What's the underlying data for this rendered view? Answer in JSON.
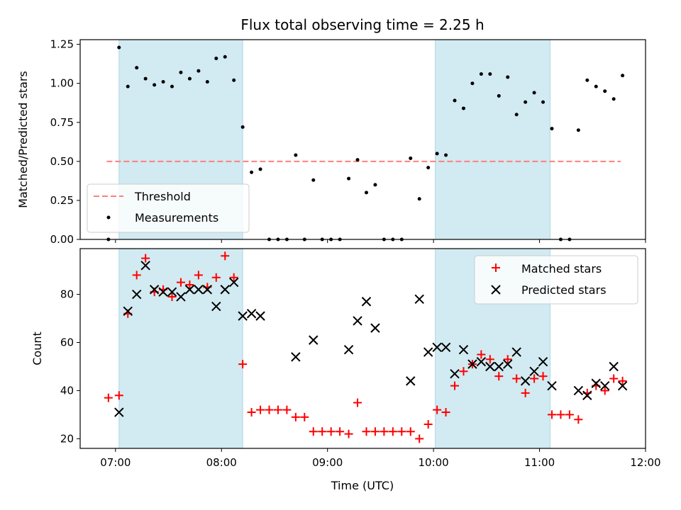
{
  "figure": {
    "title": "Flux total observing time = 2.25 h",
    "xlabel": "Time (UTC)"
  },
  "colors": {
    "band": "#add8e6",
    "threshold": "#ff7f7f",
    "measurements": "#000000",
    "matched": "#ff0000",
    "predicted": "#000000"
  },
  "chart_data": [
    {
      "type": "scatter",
      "panel": "top",
      "ylabel": "Matched/Predicted stars",
      "ylim": [
        0,
        1.28
      ],
      "yticks": [
        0,
        0.25,
        0.5,
        0.75,
        1.0,
        1.25
      ],
      "ytick_labels": [
        "0.00",
        "0.25",
        "0.50",
        "0.75",
        "1.00",
        "1.25"
      ],
      "xlim": [
        "06:40",
        "12:00"
      ],
      "xticks": [
        "07:00",
        "08:00",
        "09:00",
        "10:00",
        "11:00",
        "12:00"
      ],
      "shaded_bands": [
        [
          "07:02",
          "08:12"
        ],
        [
          "10:01",
          "11:06"
        ]
      ],
      "threshold": {
        "name": "Threshold",
        "y": 0.5,
        "x_range": [
          "06:55",
          "11:46"
        ]
      },
      "legend": {
        "location": "lower-left",
        "entries": [
          "Threshold",
          "Measurements"
        ]
      },
      "series": [
        {
          "name": "Measurements",
          "marker": "dot",
          "x": [
            "06:56",
            "07:02",
            "07:07",
            "07:12",
            "07:17",
            "07:22",
            "07:27",
            "07:32",
            "07:37",
            "07:42",
            "07:47",
            "07:52",
            "07:57",
            "08:02",
            "08:07",
            "08:12",
            "08:17",
            "08:22",
            "08:27",
            "08:32",
            "08:37",
            "08:42",
            "08:47",
            "08:52",
            "08:57",
            "09:02",
            "09:07",
            "09:12",
            "09:17",
            "09:22",
            "09:27",
            "09:32",
            "09:37",
            "09:42",
            "09:47",
            "09:52",
            "09:57",
            "10:02",
            "10:07",
            "10:12",
            "10:17",
            "10:22",
            "10:27",
            "10:32",
            "10:37",
            "10:42",
            "10:47",
            "10:52",
            "10:57",
            "11:02",
            "11:07",
            "11:12",
            "11:17",
            "11:22",
            "11:27",
            "11:32",
            "11:37",
            "11:42",
            "11:47"
          ],
          "y": [
            0.0,
            1.23,
            0.98,
            1.1,
            1.03,
            0.99,
            1.01,
            0.98,
            1.07,
            1.03,
            1.08,
            1.01,
            1.16,
            1.17,
            1.02,
            0.72,
            0.43,
            0.45,
            0.0,
            0.0,
            0.0,
            0.54,
            0.0,
            0.38,
            0.0,
            0.0,
            0.0,
            0.39,
            0.51,
            0.3,
            0.35,
            0.0,
            0.0,
            0.0,
            0.52,
            0.26,
            0.46,
            0.55,
            0.54,
            0.89,
            0.84,
            1.0,
            1.06,
            1.06,
            0.92,
            1.04,
            0.8,
            0.88,
            0.94,
            0.88,
            0.71,
            0.0,
            0.0,
            0.7,
            1.02,
            0.98,
            0.95,
            0.9,
            1.05
          ]
        }
      ]
    },
    {
      "type": "scatter",
      "panel": "bottom",
      "ylabel": "Count",
      "ylim": [
        16,
        99
      ],
      "yticks": [
        20,
        40,
        60,
        80
      ],
      "ytick_labels": [
        "20",
        "40",
        "60",
        "80"
      ],
      "xlim": [
        "06:40",
        "12:00"
      ],
      "xticks": [
        "07:00",
        "08:00",
        "09:00",
        "10:00",
        "11:00",
        "12:00"
      ],
      "xtick_labels": [
        "07:00",
        "08:00",
        "09:00",
        "10:00",
        "11:00",
        "12:00"
      ],
      "shaded_bands": [
        [
          "07:02",
          "08:12"
        ],
        [
          "10:01",
          "11:06"
        ]
      ],
      "legend": {
        "location": "top-right",
        "entries": [
          "Matched stars",
          "Predicted stars"
        ]
      },
      "series": [
        {
          "name": "Matched stars",
          "marker": "plus",
          "x": [
            "06:56",
            "07:02",
            "07:07",
            "07:12",
            "07:17",
            "07:22",
            "07:27",
            "07:32",
            "07:37",
            "07:42",
            "07:47",
            "07:52",
            "07:57",
            "08:02",
            "08:07",
            "08:12",
            "08:17",
            "08:22",
            "08:27",
            "08:32",
            "08:37",
            "08:42",
            "08:47",
            "08:52",
            "08:57",
            "09:02",
            "09:07",
            "09:12",
            "09:17",
            "09:22",
            "09:27",
            "09:32",
            "09:37",
            "09:42",
            "09:47",
            "09:52",
            "09:57",
            "10:02",
            "10:07",
            "10:12",
            "10:17",
            "10:22",
            "10:27",
            "10:32",
            "10:37",
            "10:42",
            "10:47",
            "10:52",
            "10:57",
            "11:02",
            "11:07",
            "11:12",
            "11:17",
            "11:22",
            "11:27",
            "11:32",
            "11:37",
            "11:42",
            "11:47"
          ],
          "y": [
            37,
            38,
            72,
            88,
            95,
            81,
            82,
            79,
            85,
            84,
            88,
            83,
            87,
            96,
            87,
            51,
            31,
            32,
            32,
            32,
            32,
            29,
            29,
            23,
            23,
            23,
            23,
            22,
            35,
            23,
            23,
            23,
            23,
            23,
            23,
            20,
            26,
            32,
            31,
            42,
            48,
            51,
            55,
            53,
            46,
            53,
            45,
            39,
            45,
            46,
            30,
            30,
            30,
            28,
            39,
            42,
            40,
            45,
            44
          ]
        },
        {
          "name": "Predicted stars",
          "marker": "x",
          "x": [
            "07:02",
            "07:07",
            "07:12",
            "07:17",
            "07:22",
            "07:27",
            "07:32",
            "07:37",
            "07:42",
            "07:47",
            "07:52",
            "07:57",
            "08:02",
            "08:07",
            "08:12",
            "08:17",
            "08:22",
            "08:42",
            "08:52",
            "09:12",
            "09:17",
            "09:22",
            "09:27",
            "09:47",
            "09:52",
            "09:57",
            "10:02",
            "10:07",
            "10:12",
            "10:17",
            "10:22",
            "10:27",
            "10:32",
            "10:37",
            "10:42",
            "10:47",
            "10:52",
            "10:57",
            "11:02",
            "11:07",
            "11:22",
            "11:27",
            "11:32",
            "11:37",
            "11:42",
            "11:47"
          ],
          "y": [
            31,
            73,
            80,
            92,
            82,
            81,
            81,
            79,
            82,
            82,
            82,
            75,
            82,
            85,
            71,
            72,
            71,
            54,
            61,
            57,
            69,
            77,
            66,
            44,
            78,
            56,
            58,
            58,
            47,
            57,
            51,
            52,
            50,
            50,
            51,
            56,
            44,
            48,
            52,
            42,
            40,
            38,
            43,
            42,
            50,
            42
          ]
        }
      ]
    }
  ]
}
